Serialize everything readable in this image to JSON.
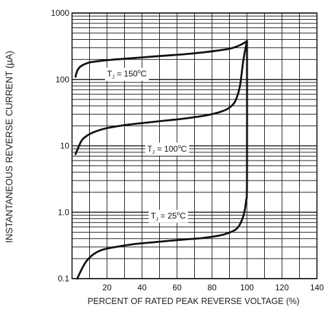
{
  "chart_data": {
    "type": "line",
    "xlabel": "PERCENT OF RATED PEAK REVERSE VOLTAGE (%)",
    "ylabel": "INSTANTANEOUS  REVERSE CURRENT (µA)",
    "xlim": [
      0,
      140
    ],
    "ylim": [
      0.1,
      1000
    ],
    "y_scale": "log",
    "x_ticks": [
      "20",
      "40",
      "60",
      "80",
      "100",
      "120",
      "140"
    ],
    "y_ticks": [
      "0.1",
      "1.0",
      "10",
      "100",
      "1000"
    ],
    "grid": true,
    "series": [
      {
        "label": "T₁ = 150°C",
        "label_parts": {
          "t": "T",
          "sub": "J",
          "rest": " = 150",
          "sup": "o",
          "unit": "C"
        },
        "label_at": [
          20,
          110
        ],
        "points": [
          [
            2,
            110
          ],
          [
            3,
            135
          ],
          [
            5,
            158
          ],
          [
            10,
            180
          ],
          [
            20,
            195
          ],
          [
            30,
            205
          ],
          [
            40,
            215
          ],
          [
            50,
            225
          ],
          [
            60,
            235
          ],
          [
            70,
            248
          ],
          [
            80,
            265
          ],
          [
            90,
            290
          ],
          [
            95,
            320
          ],
          [
            98,
            350
          ],
          [
            100,
            380
          ]
        ]
      },
      {
        "label": "T₁ = 100°C",
        "label_parts": {
          "t": "T",
          "sub": "J",
          "rest": " = 100",
          "sup": "o",
          "unit": "C"
        },
        "label_at": [
          43,
          8.2
        ],
        "points": [
          [
            2,
            7.5
          ],
          [
            4,
            10
          ],
          [
            6,
            12.5
          ],
          [
            10,
            15
          ],
          [
            15,
            17
          ],
          [
            20,
            18.5
          ],
          [
            30,
            20.5
          ],
          [
            40,
            22
          ],
          [
            50,
            23.5
          ],
          [
            60,
            25
          ],
          [
            70,
            27
          ],
          [
            80,
            30
          ],
          [
            88,
            35
          ],
          [
            92,
            42
          ],
          [
            94,
            52
          ],
          [
            96,
            80
          ],
          [
            98,
            200
          ],
          [
            100,
            380
          ]
        ]
      },
      {
        "label": "T₁ = 25°C",
        "label_parts": {
          "t": "T",
          "sub": "J",
          "rest": " = 25",
          "sup": "o",
          "unit": "C"
        },
        "label_at": [
          45,
          0.8
        ],
        "points": [
          [
            3,
            0.1
          ],
          [
            5,
            0.13
          ],
          [
            8,
            0.18
          ],
          [
            12,
            0.23
          ],
          [
            17,
            0.27
          ],
          [
            25,
            0.3
          ],
          [
            35,
            0.33
          ],
          [
            45,
            0.35
          ],
          [
            55,
            0.37
          ],
          [
            65,
            0.39
          ],
          [
            75,
            0.41
          ],
          [
            85,
            0.45
          ],
          [
            92,
            0.52
          ],
          [
            95,
            0.6
          ],
          [
            97,
            0.75
          ],
          [
            98.5,
            1.0
          ],
          [
            99.5,
            1.5
          ],
          [
            100,
            3
          ],
          [
            100,
            380
          ]
        ]
      }
    ]
  }
}
